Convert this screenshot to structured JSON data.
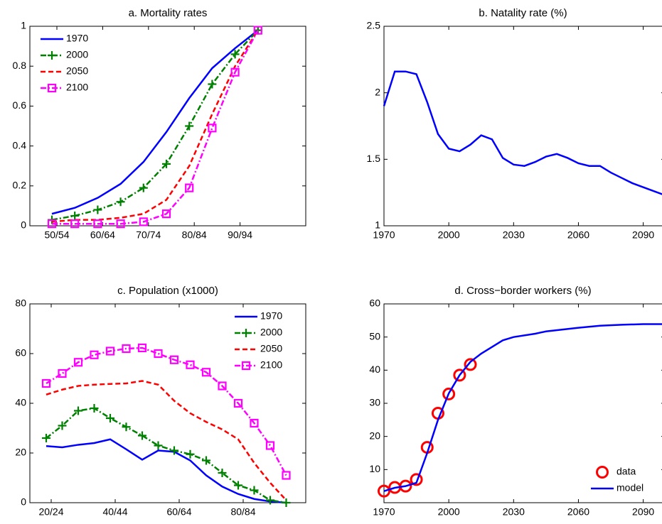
{
  "chart_data": [
    {
      "type": "line",
      "title": "a. Mortality rates",
      "categories": [
        "50/54",
        null,
        "60/64",
        null,
        "70/74",
        null,
        "80/84",
        null,
        "90/94",
        null
      ],
      "ylim": [
        0,
        1
      ],
      "yticks": [
        0,
        0.2,
        0.4,
        0.6,
        0.8,
        1
      ],
      "legend": "upper left",
      "grid": false,
      "series": [
        {
          "name": "1970",
          "color": "#0000ff",
          "linestyle": "solid",
          "marker": "none",
          "values": [
            0.06,
            0.09,
            0.14,
            0.21,
            0.32,
            0.47,
            0.64,
            0.79,
            0.89,
            0.98
          ]
        },
        {
          "name": "2000",
          "color": "#008000",
          "linestyle": "dashdot",
          "marker": "plus",
          "values": [
            0.03,
            0.05,
            0.08,
            0.12,
            0.19,
            0.31,
            0.5,
            0.71,
            0.86,
            0.98
          ]
        },
        {
          "name": "2050",
          "color": "#ff0000",
          "linestyle": "dashed",
          "marker": "none",
          "values": [
            0.02,
            0.03,
            0.03,
            0.04,
            0.06,
            0.13,
            0.3,
            0.56,
            0.8,
            0.98
          ]
        },
        {
          "name": "2100",
          "color": "#ff00ff",
          "linestyle": "dashdot",
          "marker": "square",
          "values": [
            0.01,
            0.01,
            0.01,
            0.01,
            0.02,
            0.06,
            0.19,
            0.49,
            0.77,
            0.98
          ]
        }
      ]
    },
    {
      "type": "line",
      "title": "b. Natality rate (%)",
      "xlim": [
        1970,
        2100
      ],
      "xticks": [
        1970,
        2000,
        2030,
        2060,
        2090
      ],
      "ylim": [
        1,
        2.5
      ],
      "yticks": [
        1,
        1.5,
        2,
        2.5
      ],
      "grid": false,
      "series": [
        {
          "color": "#0000ff",
          "linestyle": "solid",
          "marker": "none",
          "x": [
            1970,
            1975,
            1980,
            1985,
            1990,
            1995,
            2000,
            2005,
            2010,
            2015,
            2020,
            2025,
            2030,
            2035,
            2040,
            2045,
            2050,
            2055,
            2060,
            2065,
            2070,
            2075,
            2080,
            2085,
            2090,
            2095,
            2100
          ],
          "values": [
            1.9,
            2.16,
            2.16,
            2.14,
            1.93,
            1.69,
            1.58,
            1.56,
            1.61,
            1.68,
            1.65,
            1.51,
            1.46,
            1.45,
            1.48,
            1.52,
            1.54,
            1.51,
            1.47,
            1.45,
            1.45,
            1.4,
            1.36,
            1.32,
            1.29,
            1.26,
            1.23
          ]
        }
      ]
    },
    {
      "type": "line",
      "title": "c. Population (x1000)",
      "categories": [
        "20/24",
        null,
        null,
        null,
        "40/44",
        null,
        null,
        null,
        "60/64",
        null,
        null,
        null,
        "80/84",
        null,
        null,
        null
      ],
      "ylim": [
        0,
        80
      ],
      "yticks": [
        0,
        20,
        40,
        60,
        80
      ],
      "legend": "upper right",
      "grid": false,
      "series": [
        {
          "name": "1970",
          "color": "#0000ff",
          "linestyle": "solid",
          "marker": "none",
          "values": [
            22.8,
            22.3,
            23.3,
            24,
            25.5,
            21.5,
            17.3,
            21,
            20.5,
            17,
            11,
            6.5,
            3.5,
            1.5,
            0.5,
            0
          ]
        },
        {
          "name": "2000",
          "color": "#008000",
          "linestyle": "dashdot",
          "marker": "plus",
          "values": [
            26,
            31,
            37,
            38,
            34,
            30.5,
            27,
            23,
            21,
            19.5,
            17,
            12,
            7,
            5,
            1,
            0
          ]
        },
        {
          "name": "2050",
          "color": "#ff0000",
          "linestyle": "dashed",
          "marker": "none",
          "values": [
            43.5,
            45.5,
            47,
            47.5,
            47.8,
            48,
            49,
            47.5,
            41,
            36,
            32.5,
            29.5,
            25.5,
            16,
            8,
            1
          ]
        },
        {
          "name": "2100",
          "color": "#ff00ff",
          "linestyle": "dashdot",
          "marker": "square",
          "values": [
            48,
            52,
            56.5,
            59.5,
            61,
            62,
            62.3,
            60,
            57.5,
            55.5,
            52.5,
            47,
            40,
            32,
            23,
            11
          ]
        }
      ]
    },
    {
      "type": "line",
      "title": "d. Cross−border workers (%)",
      "xlim": [
        1970,
        2100
      ],
      "xticks": [
        1970,
        2000,
        2030,
        2060,
        2090
      ],
      "ylim": [
        0,
        60
      ],
      "yticks": [
        10,
        20,
        30,
        40,
        50,
        60
      ],
      "legend": "lower right",
      "grid": false,
      "series": [
        {
          "name": "data",
          "color": "#ff0000",
          "linestyle": "none",
          "marker": "circle",
          "x": [
            1970,
            1975,
            1980,
            1985,
            1990,
            1995,
            2000,
            2005,
            2010
          ],
          "values": [
            3.5,
            4.6,
            5,
            7,
            16.7,
            27,
            32.8,
            38.5,
            41.7
          ]
        },
        {
          "name": "model",
          "color": "#0000ff",
          "linestyle": "solid",
          "marker": "none",
          "x": [
            1970,
            1975,
            1980,
            1985,
            1990,
            1995,
            2000,
            2005,
            2010,
            2015,
            2020,
            2025,
            2030,
            2040,
            2045,
            2060,
            2070,
            2080,
            2090,
            2100
          ],
          "values": [
            3.5,
            4.5,
            5,
            6,
            15,
            25,
            33,
            38.5,
            42.5,
            45,
            47,
            49,
            50,
            51,
            51.7,
            52.8,
            53.4,
            53.7,
            53.9,
            53.9
          ]
        }
      ]
    }
  ]
}
